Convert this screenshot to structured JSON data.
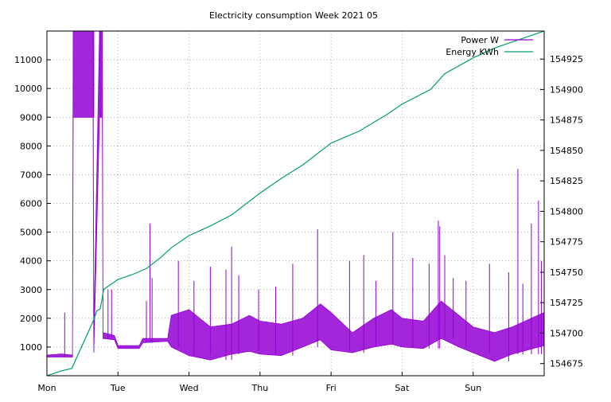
{
  "chart_data": {
    "type": "line",
    "title": "Electricity consumption Week 2021 05",
    "xlabel": "",
    "ylabel": "",
    "x_unit": "days since Mon 00:00",
    "x_range": [
      0,
      7
    ],
    "x_ticks": [
      {
        "value": 0,
        "label": "Mon"
      },
      {
        "value": 1,
        "label": "Tue"
      },
      {
        "value": 2,
        "label": "Wed"
      },
      {
        "value": 3,
        "label": "Thu"
      },
      {
        "value": 4,
        "label": "Fri"
      },
      {
        "value": 5,
        "label": "Sat"
      },
      {
        "value": 6,
        "label": "Sun"
      }
    ],
    "y_left": {
      "range": [
        0,
        12000
      ],
      "ticks": [
        1000,
        2000,
        3000,
        4000,
        5000,
        6000,
        7000,
        8000,
        9000,
        10000,
        11000
      ]
    },
    "y_right": {
      "range": [
        154665,
        154948
      ],
      "ticks": [
        154675,
        154700,
        154725,
        154750,
        154775,
        154800,
        154825,
        154850,
        154875,
        154900,
        154925
      ]
    },
    "grid": true,
    "legend_position": "top-right",
    "series": [
      {
        "name": "Power W",
        "axis": "left",
        "color": "#9400d3",
        "envelope": [
          {
            "x": 0.0,
            "lo": 650,
            "hi": 720
          },
          {
            "x": 0.2,
            "lo": 650,
            "hi": 760
          },
          {
            "x": 0.36,
            "lo": 650,
            "hi": 720
          },
          {
            "x": 0.37,
            "lo": 9000,
            "hi": 12000
          },
          {
            "x": 0.65,
            "lo": 9000,
            "hi": 12000
          },
          {
            "x": 0.66,
            "lo": 800,
            "hi": 1500
          },
          {
            "x": 0.74,
            "lo": 9000,
            "hi": 12000
          },
          {
            "x": 0.78,
            "lo": 9000,
            "hi": 12000
          },
          {
            "x": 0.79,
            "lo": 1300,
            "hi": 1500
          },
          {
            "x": 0.95,
            "lo": 1250,
            "hi": 1400
          },
          {
            "x": 1.0,
            "lo": 950,
            "hi": 1050
          },
          {
            "x": 1.3,
            "lo": 950,
            "hi": 1050
          },
          {
            "x": 1.35,
            "lo": 1150,
            "hi": 1300
          },
          {
            "x": 1.7,
            "lo": 1200,
            "hi": 1300
          },
          {
            "x": 1.75,
            "lo": 1000,
            "hi": 2100
          },
          {
            "x": 2.0,
            "lo": 700,
            "hi": 2300
          },
          {
            "x": 2.3,
            "lo": 550,
            "hi": 1700
          },
          {
            "x": 2.6,
            "lo": 750,
            "hi": 1800
          },
          {
            "x": 2.85,
            "lo": 850,
            "hi": 2100
          },
          {
            "x": 3.0,
            "lo": 750,
            "hi": 1900
          },
          {
            "x": 3.3,
            "lo": 700,
            "hi": 1800
          },
          {
            "x": 3.6,
            "lo": 1000,
            "hi": 2000
          },
          {
            "x": 3.85,
            "lo": 1250,
            "hi": 2500
          },
          {
            "x": 4.0,
            "lo": 900,
            "hi": 2200
          },
          {
            "x": 4.3,
            "lo": 800,
            "hi": 1500
          },
          {
            "x": 4.6,
            "lo": 1000,
            "hi": 2000
          },
          {
            "x": 4.85,
            "lo": 1100,
            "hi": 2300
          },
          {
            "x": 5.0,
            "lo": 1000,
            "hi": 2000
          },
          {
            "x": 5.3,
            "lo": 950,
            "hi": 1900
          },
          {
            "x": 5.55,
            "lo": 1300,
            "hi": 2600
          },
          {
            "x": 5.8,
            "lo": 1000,
            "hi": 2100
          },
          {
            "x": 6.0,
            "lo": 800,
            "hi": 1700
          },
          {
            "x": 6.3,
            "lo": 500,
            "hi": 1500
          },
          {
            "x": 6.55,
            "lo": 750,
            "hi": 1700
          },
          {
            "x": 7.0,
            "lo": 1050,
            "hi": 2200
          }
        ],
        "spikes": [
          {
            "x": 0.25,
            "y": 2200
          },
          {
            "x": 0.66,
            "y": 12000
          },
          {
            "x": 0.75,
            "y": 12000
          },
          {
            "x": 0.86,
            "y": 3000
          },
          {
            "x": 0.91,
            "y": 3000
          },
          {
            "x": 1.4,
            "y": 2600
          },
          {
            "x": 1.45,
            "y": 5300
          },
          {
            "x": 1.48,
            "y": 3400
          },
          {
            "x": 1.85,
            "y": 4000
          },
          {
            "x": 2.07,
            "y": 3300
          },
          {
            "x": 2.3,
            "y": 3800
          },
          {
            "x": 2.52,
            "y": 3700
          },
          {
            "x": 2.6,
            "y": 4500
          },
          {
            "x": 2.7,
            "y": 3500
          },
          {
            "x": 2.98,
            "y": 3000
          },
          {
            "x": 3.22,
            "y": 3100
          },
          {
            "x": 3.46,
            "y": 3900
          },
          {
            "x": 3.81,
            "y": 5100
          },
          {
            "x": 4.26,
            "y": 4000
          },
          {
            "x": 4.46,
            "y": 4200
          },
          {
            "x": 4.63,
            "y": 3300
          },
          {
            "x": 4.87,
            "y": 5000
          },
          {
            "x": 5.15,
            "y": 4100
          },
          {
            "x": 5.38,
            "y": 3900
          },
          {
            "x": 5.51,
            "y": 5400
          },
          {
            "x": 5.53,
            "y": 5200
          },
          {
            "x": 5.6,
            "y": 4200
          },
          {
            "x": 5.72,
            "y": 3400
          },
          {
            "x": 5.9,
            "y": 3300
          },
          {
            "x": 6.23,
            "y": 3900
          },
          {
            "x": 6.5,
            "y": 3600
          },
          {
            "x": 6.63,
            "y": 7200
          },
          {
            "x": 6.82,
            "y": 5300
          },
          {
            "x": 6.92,
            "y": 6100
          },
          {
            "x": 6.96,
            "y": 4000
          },
          {
            "x": 6.7,
            "y": 3200
          }
        ]
      },
      {
        "name": "Energy KWh",
        "axis": "right",
        "color": "#009e73",
        "points": [
          [
            0.0,
            154665
          ],
          [
            0.1,
            154667
          ],
          [
            0.2,
            154669
          ],
          [
            0.35,
            154671
          ],
          [
            0.66,
            154711
          ],
          [
            0.7,
            154718
          ],
          [
            0.75,
            154720
          ],
          [
            0.8,
            154736
          ],
          [
            0.9,
            154740
          ],
          [
            1.0,
            154744
          ],
          [
            1.2,
            154748
          ],
          [
            1.4,
            154753
          ],
          [
            1.6,
            154762
          ],
          [
            1.75,
            154770
          ],
          [
            2.0,
            154780
          ],
          [
            2.3,
            154788
          ],
          [
            2.6,
            154797
          ],
          [
            3.0,
            154815
          ],
          [
            3.3,
            154827
          ],
          [
            3.6,
            154838
          ],
          [
            3.8,
            154847
          ],
          [
            4.0,
            154856
          ],
          [
            4.4,
            154866
          ],
          [
            4.8,
            154880
          ],
          [
            5.0,
            154888
          ],
          [
            5.4,
            154900
          ],
          [
            5.6,
            154913
          ],
          [
            6.0,
            154926
          ],
          [
            6.3,
            154934
          ],
          [
            6.6,
            154940
          ],
          [
            7.0,
            154948
          ]
        ]
      }
    ]
  }
}
